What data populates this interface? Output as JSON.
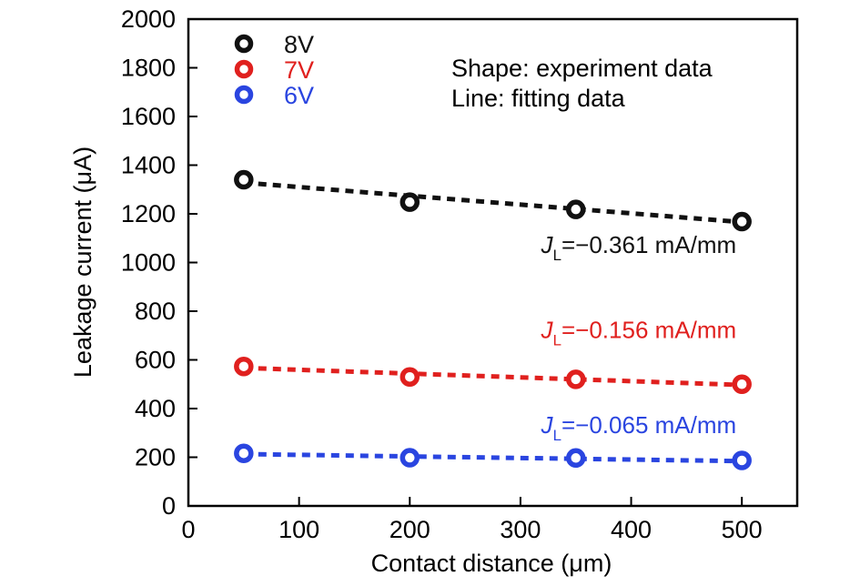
{
  "chart_data": {
    "type": "scatter",
    "title": "",
    "xlabel": "Contact distance (μm)",
    "ylabel": "Leakage current (μA)",
    "xlim": [
      0,
      550
    ],
    "ylim": [
      0,
      2000
    ],
    "xticks": [
      0,
      100,
      200,
      300,
      400,
      500
    ],
    "yticks": [
      0,
      200,
      400,
      600,
      800,
      1000,
      1200,
      1400,
      1600,
      1800,
      2000
    ],
    "grid": false,
    "legend_position": "top-left",
    "series": [
      {
        "name": "8V",
        "color": "#111111",
        "x": [
          50,
          200,
          350,
          500
        ],
        "y": [
          1340,
          1248,
          1218,
          1168
        ],
        "fit": {
          "x": [
            50,
            500
          ],
          "y": [
            1328,
            1166
          ]
        },
        "annotation": {
          "prefix": "J",
          "subscript": "L",
          "text": "=−0.361 mA/mm",
          "at": [
            500,
            1040
          ]
        }
      },
      {
        "name": "7V",
        "color": "#e0201e",
        "x": [
          50,
          200,
          350,
          500
        ],
        "y": [
          573,
          530,
          520,
          500
        ],
        "fit": {
          "x": [
            50,
            500
          ],
          "y": [
            567,
            497
          ]
        },
        "annotation": {
          "prefix": "J",
          "subscript": "L",
          "text": "=−0.156 mA/mm",
          "at": [
            500,
            690
          ]
        }
      },
      {
        "name": "6V",
        "color": "#2a45e0",
        "x": [
          50,
          200,
          350,
          500
        ],
        "y": [
          216,
          198,
          197,
          187
        ],
        "fit": {
          "x": [
            50,
            500
          ],
          "y": [
            213,
            184
          ]
        },
        "annotation": {
          "prefix": "J",
          "subscript": "L",
          "text": "=−0.065 mA/mm",
          "at": [
            500,
            300
          ]
        }
      }
    ],
    "notes": [
      "Shape: experiment data",
      "Line: fitting data"
    ]
  }
}
